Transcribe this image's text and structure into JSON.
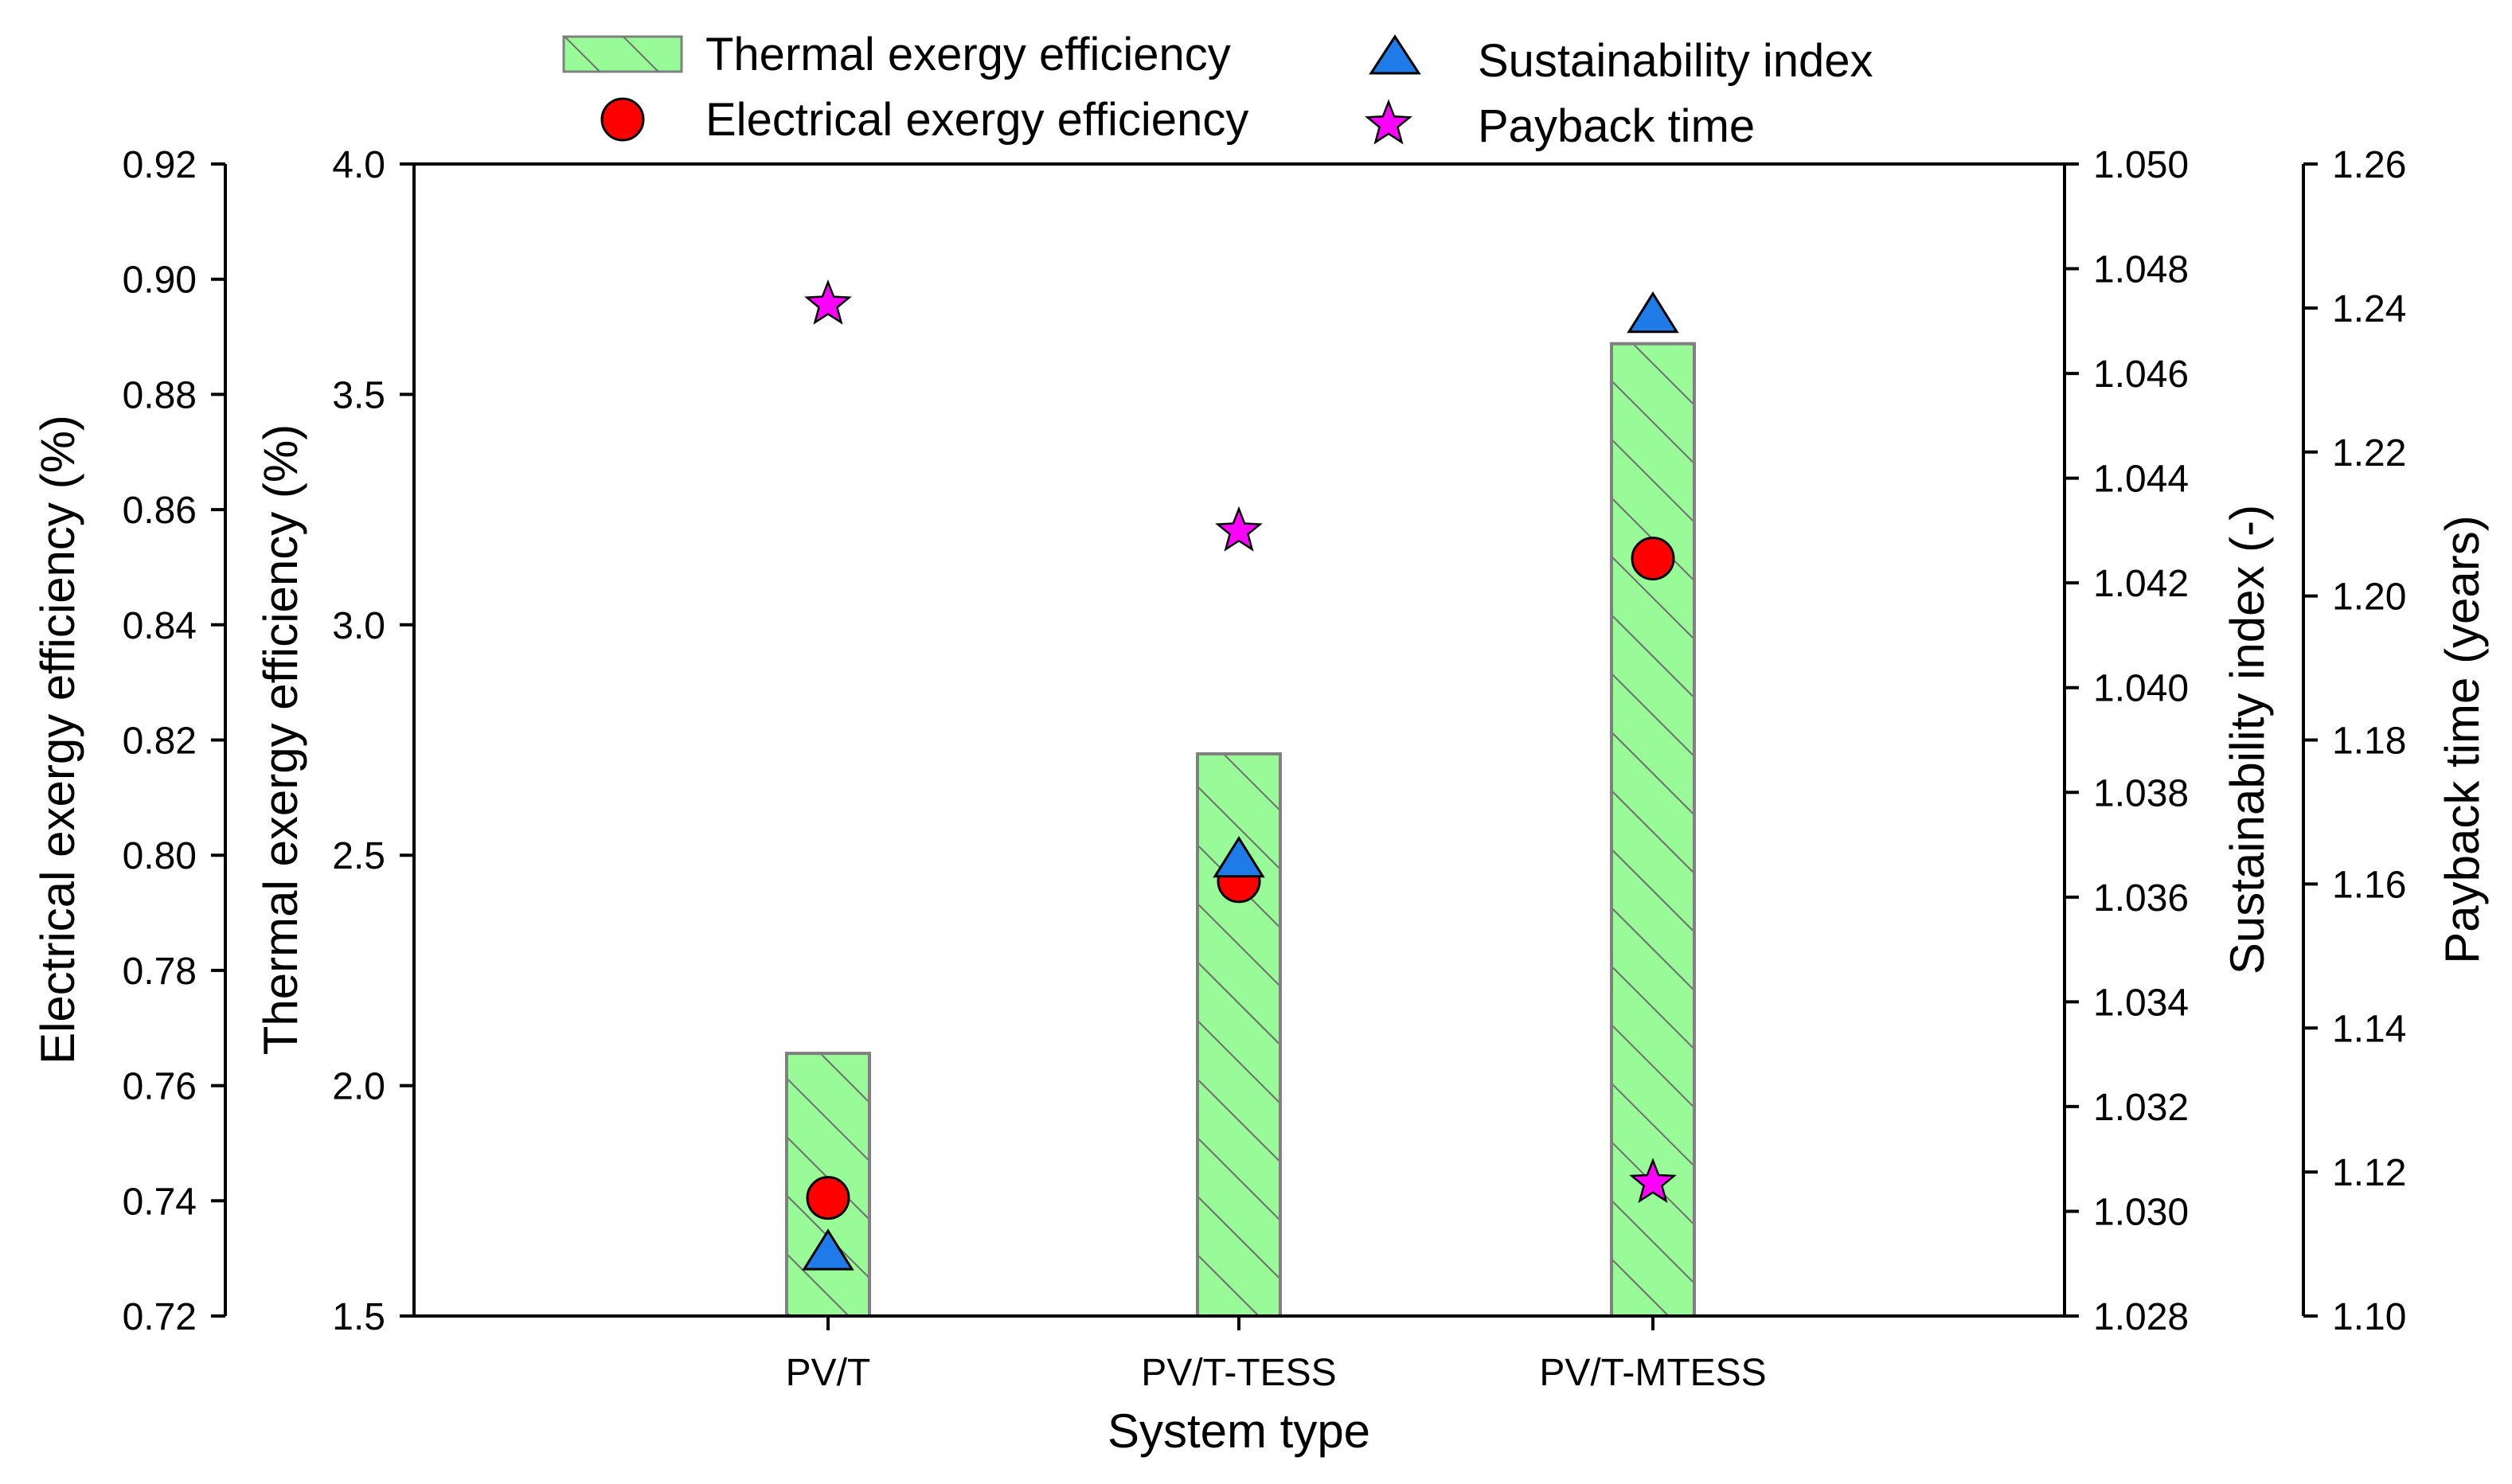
{
  "chart_data": {
    "type": "bar",
    "xlabel": "System type",
    "categories": [
      "PV/T",
      "PV/T-TESS",
      "PV/T-MTESS"
    ],
    "legend": {
      "placement": "top",
      "items": [
        {
          "label": "Thermal exergy efficiency",
          "marker": "hatched-bar"
        },
        {
          "label": "Electrical exergy efficiency",
          "marker": "circle"
        },
        {
          "label": "Sustainability index",
          "marker": "triangle"
        },
        {
          "label": "Payback time",
          "marker": "star"
        }
      ]
    },
    "axes": {
      "thermal": {
        "label": "Thermal exergy efficiency (%)",
        "range": [
          1.5,
          4.0
        ],
        "ticks": [
          "1.5",
          "2.0",
          "2.5",
          "3.0",
          "3.5",
          "4.0"
        ]
      },
      "electrical": {
        "label": "Electrical exergy efficiency (%)",
        "range": [
          0.72,
          0.92
        ],
        "ticks": [
          "0.72",
          "0.74",
          "0.76",
          "0.78",
          "0.80",
          "0.82",
          "0.84",
          "0.86",
          "0.88",
          "0.90",
          "0.92"
        ]
      },
      "sustainability": {
        "label": "Sustainability index (-)",
        "range": [
          1.028,
          1.05
        ],
        "ticks": [
          "1.028",
          "1.030",
          "1.032",
          "1.034",
          "1.036",
          "1.038",
          "1.040",
          "1.042",
          "1.044",
          "1.046",
          "1.048",
          "1.050"
        ]
      },
      "payback": {
        "label": "Payback time (years)",
        "range": [
          1.1,
          1.26
        ],
        "ticks": [
          "1.10",
          "1.12",
          "1.14",
          "1.16",
          "1.18",
          "1.20",
          "1.22",
          "1.24",
          "1.26"
        ]
      }
    },
    "series": [
      {
        "name": "Thermal exergy efficiency",
        "kind": "bar",
        "axis": "thermal",
        "values": [
          2.07,
          2.72,
          3.61
        ]
      },
      {
        "name": "Electrical exergy efficiency",
        "kind": "circle",
        "axis": "electrical",
        "values": [
          0.7405,
          0.7955,
          0.8515
        ]
      },
      {
        "name": "Sustainability index",
        "kind": "triangle",
        "axis": "sustainability",
        "values": [
          1.0292,
          1.0367,
          1.0471
        ]
      },
      {
        "name": "Payback time",
        "kind": "star",
        "axis": "payback",
        "values": [
          1.2405,
          1.209,
          1.1185
        ]
      }
    ],
    "colors": {
      "bar_fill": "#98fb98",
      "bar_hatch": "#6e6e6e",
      "bar_edge": "#808080",
      "circle": "#ff0000",
      "triangle": "#1e7be8",
      "star": "#ff00ff"
    },
    "grid": false
  }
}
